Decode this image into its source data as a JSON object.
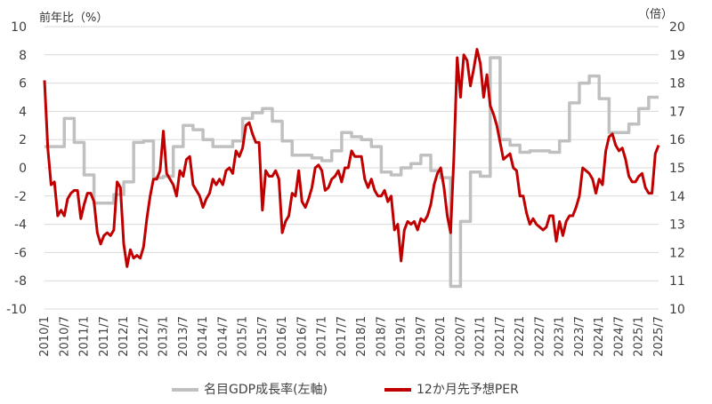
{
  "chart_data": {
    "type": "line",
    "title": "",
    "left_axis_unit": "前年比（%）",
    "right_axis_unit": "（倍）",
    "left_ylim": [
      -10,
      10
    ],
    "left_ticks": [
      10,
      8,
      6,
      4,
      2,
      0,
      -2,
      -4,
      -6,
      -8,
      -10
    ],
    "right_ylim": [
      10,
      20
    ],
    "right_ticks": [
      20,
      19,
      18,
      17,
      16,
      15,
      14,
      13,
      12,
      11,
      10
    ],
    "x_ticks": [
      "2010/1",
      "2010/7",
      "2011/1",
      "2011/7",
      "2012/1",
      "2012/7",
      "2013/1",
      "2013/7",
      "2014/1",
      "2014/7",
      "2015/1",
      "2015/7",
      "2016/1",
      "2016/7",
      "2017/1",
      "2017/7",
      "2018/1",
      "2018/7",
      "2019/1",
      "2019/7",
      "2020/1",
      "2020/7",
      "2021/1",
      "2021/7",
      "2022/1",
      "2022/7",
      "2023/1",
      "2023/7",
      "2024/1",
      "2024/7",
      "2025/1",
      "2025/7"
    ],
    "grid": true,
    "legend_position": "bottom",
    "series": [
      {
        "name": "名目GDP成長率(左軸)",
        "axis": "left",
        "color": "#c0c0c0",
        "step": true,
        "points": [
          [
            "2010/1",
            1.5
          ],
          [
            "2010/4",
            1.5
          ],
          [
            "2010/7",
            3.5
          ],
          [
            "2010/10",
            1.8
          ],
          [
            "2011/1",
            -0.5
          ],
          [
            "2011/4",
            -2.5
          ],
          [
            "2011/7",
            -2.5
          ],
          [
            "2011/10",
            -1.9
          ],
          [
            "2012/1",
            -1.0
          ],
          [
            "2012/4",
            1.8
          ],
          [
            "2012/7",
            1.9
          ],
          [
            "2012/10",
            -0.7
          ],
          [
            "2013/1",
            -0.6
          ],
          [
            "2013/4",
            1.5
          ],
          [
            "2013/7",
            3.0
          ],
          [
            "2013/10",
            2.7
          ],
          [
            "2014/1",
            2.0
          ],
          [
            "2014/4",
            1.5
          ],
          [
            "2014/7",
            1.5
          ],
          [
            "2014/10",
            1.9
          ],
          [
            "2015/1",
            3.5
          ],
          [
            "2015/4",
            3.9
          ],
          [
            "2015/7",
            4.2
          ],
          [
            "2015/10",
            3.3
          ],
          [
            "2016/1",
            1.9
          ],
          [
            "2016/4",
            0.9
          ],
          [
            "2016/7",
            0.9
          ],
          [
            "2016/10",
            0.7
          ],
          [
            "2017/1",
            0.5
          ],
          [
            "2017/4",
            1.2
          ],
          [
            "2017/7",
            2.5
          ],
          [
            "2017/10",
            2.2
          ],
          [
            "2018/1",
            2.0
          ],
          [
            "2018/4",
            1.5
          ],
          [
            "2018/7",
            -0.3
          ],
          [
            "2018/10",
            -0.5
          ],
          [
            "2019/1",
            0.0
          ],
          [
            "2019/4",
            0.3
          ],
          [
            "2019/7",
            0.9
          ],
          [
            "2019/10",
            -0.2
          ],
          [
            "2020/1",
            -0.7
          ],
          [
            "2020/4",
            -8.4
          ],
          [
            "2020/7",
            -3.8
          ],
          [
            "2020/10",
            -0.3
          ],
          [
            "2021/1",
            -0.6
          ],
          [
            "2021/4",
            7.8
          ],
          [
            "2021/7",
            2.0
          ],
          [
            "2021/10",
            1.6
          ],
          [
            "2022/1",
            1.1
          ],
          [
            "2022/4",
            1.2
          ],
          [
            "2022/7",
            1.2
          ],
          [
            "2022/10",
            1.1
          ],
          [
            "2023/1",
            1.9
          ],
          [
            "2023/4",
            4.6
          ],
          [
            "2023/7",
            6.0
          ],
          [
            "2023/10",
            6.5
          ],
          [
            "2024/1",
            4.9
          ],
          [
            "2024/4",
            2.5
          ],
          [
            "2024/7",
            2.5
          ],
          [
            "2024/10",
            3.1
          ],
          [
            "2025/1",
            4.2
          ],
          [
            "2025/4",
            5.0
          ],
          [
            "2025/7",
            5.0
          ]
        ]
      },
      {
        "name": "12か月先予想PER",
        "axis": "right",
        "color": "#c00000",
        "step": false,
        "points": [
          [
            "2010/1",
            18.1
          ],
          [
            "2010/2",
            15.7
          ],
          [
            "2010/3",
            14.4
          ],
          [
            "2010/4",
            14.5
          ],
          [
            "2010/5",
            13.3
          ],
          [
            "2010/6",
            13.5
          ],
          [
            "2010/7",
            13.3
          ],
          [
            "2010/8",
            13.9
          ],
          [
            "2010/9",
            14.1
          ],
          [
            "2010/10",
            14.2
          ],
          [
            "2010/11",
            14.2
          ],
          [
            "2010/12",
            13.2
          ],
          [
            "2011/1",
            13.7
          ],
          [
            "2011/2",
            14.1
          ],
          [
            "2011/3",
            14.1
          ],
          [
            "2011/4",
            13.8
          ],
          [
            "2011/5",
            12.7
          ],
          [
            "2011/6",
            12.3
          ],
          [
            "2011/7",
            12.6
          ],
          [
            "2011/8",
            12.7
          ],
          [
            "2011/9",
            12.6
          ],
          [
            "2011/10",
            12.8
          ],
          [
            "2011/11",
            14.5
          ],
          [
            "2011/12",
            14.3
          ],
          [
            "2012/1",
            12.3
          ],
          [
            "2012/2",
            11.5
          ],
          [
            "2012/3",
            12.1
          ],
          [
            "2012/4",
            11.8
          ],
          [
            "2012/5",
            11.9
          ],
          [
            "2012/6",
            11.8
          ],
          [
            "2012/7",
            12.2
          ],
          [
            "2012/8",
            13.2
          ],
          [
            "2012/9",
            14.0
          ],
          [
            "2012/10",
            14.6
          ],
          [
            "2012/11",
            14.6
          ],
          [
            "2012/12",
            14.9
          ],
          [
            "2013/1",
            16.3
          ],
          [
            "2013/2",
            14.8
          ],
          [
            "2013/3",
            14.6
          ],
          [
            "2013/4",
            14.4
          ],
          [
            "2013/5",
            14.0
          ],
          [
            "2013/6",
            14.9
          ],
          [
            "2013/7",
            14.7
          ],
          [
            "2013/8",
            15.3
          ],
          [
            "2013/9",
            15.4
          ],
          [
            "2013/10",
            14.4
          ],
          [
            "2013/11",
            14.2
          ],
          [
            "2013/12",
            14.0
          ],
          [
            "2014/1",
            13.6
          ],
          [
            "2014/2",
            13.9
          ],
          [
            "2014/3",
            14.1
          ],
          [
            "2014/4",
            14.6
          ],
          [
            "2014/5",
            14.4
          ],
          [
            "2014/6",
            14.6
          ],
          [
            "2014/7",
            14.4
          ],
          [
            "2014/8",
            14.9
          ],
          [
            "2014/9",
            15.0
          ],
          [
            "2014/10",
            14.8
          ],
          [
            "2014/11",
            15.6
          ],
          [
            "2014/12",
            15.4
          ],
          [
            "2015/1",
            15.7
          ],
          [
            "2015/2",
            16.5
          ],
          [
            "2015/3",
            16.6
          ],
          [
            "2015/4",
            16.2
          ],
          [
            "2015/5",
            15.9
          ],
          [
            "2015/6",
            15.9
          ],
          [
            "2015/7",
            13.5
          ],
          [
            "2015/8",
            14.9
          ],
          [
            "2015/9",
            14.7
          ],
          [
            "2015/10",
            14.7
          ],
          [
            "2015/11",
            14.9
          ],
          [
            "2015/12",
            14.6
          ],
          [
            "2016/1",
            12.7
          ],
          [
            "2016/2",
            13.1
          ],
          [
            "2016/3",
            13.3
          ],
          [
            "2016/4",
            14.1
          ],
          [
            "2016/5",
            14.0
          ],
          [
            "2016/6",
            14.9
          ],
          [
            "2016/7",
            13.8
          ],
          [
            "2016/8",
            13.6
          ],
          [
            "2016/9",
            13.9
          ],
          [
            "2016/10",
            14.3
          ],
          [
            "2016/11",
            15.0
          ],
          [
            "2016/12",
            15.1
          ],
          [
            "2017/1",
            14.9
          ],
          [
            "2017/2",
            14.2
          ],
          [
            "2017/3",
            14.3
          ],
          [
            "2017/4",
            14.6
          ],
          [
            "2017/5",
            14.7
          ],
          [
            "2017/6",
            14.9
          ],
          [
            "2017/7",
            14.5
          ],
          [
            "2017/8",
            15.0
          ],
          [
            "2017/9",
            15.0
          ],
          [
            "2017/10",
            15.6
          ],
          [
            "2017/11",
            15.4
          ],
          [
            "2017/12",
            15.4
          ],
          [
            "2018/1",
            15.4
          ],
          [
            "2018/2",
            14.6
          ],
          [
            "2018/3",
            14.3
          ],
          [
            "2018/4",
            14.6
          ],
          [
            "2018/5",
            14.2
          ],
          [
            "2018/6",
            14.0
          ],
          [
            "2018/7",
            14.0
          ],
          [
            "2018/8",
            14.2
          ],
          [
            "2018/9",
            13.8
          ],
          [
            "2018/10",
            14.0
          ],
          [
            "2018/11",
            12.8
          ],
          [
            "2018/12",
            13.0
          ],
          [
            "2019/1",
            11.7
          ],
          [
            "2019/2",
            12.8
          ],
          [
            "2019/3",
            13.1
          ],
          [
            "2019/4",
            13.0
          ],
          [
            "2019/5",
            13.1
          ],
          [
            "2019/6",
            12.8
          ],
          [
            "2019/7",
            13.2
          ],
          [
            "2019/8",
            13.1
          ],
          [
            "2019/9",
            13.3
          ],
          [
            "2019/10",
            13.7
          ],
          [
            "2019/11",
            14.4
          ],
          [
            "2019/12",
            14.8
          ],
          [
            "2020/1",
            15.0
          ],
          [
            "2020/2",
            14.3
          ],
          [
            "2020/3",
            13.3
          ],
          [
            "2020/4",
            12.7
          ],
          [
            "2020/5",
            15.4
          ],
          [
            "2020/6",
            18.9
          ],
          [
            "2020/7",
            17.5
          ],
          [
            "2020/8",
            19.0
          ],
          [
            "2020/9",
            18.8
          ],
          [
            "2020/10",
            17.9
          ],
          [
            "2020/11",
            18.5
          ],
          [
            "2020/12",
            19.2
          ],
          [
            "2021/1",
            18.7
          ],
          [
            "2021/2",
            17.5
          ],
          [
            "2021/3",
            18.3
          ],
          [
            "2021/4",
            17.2
          ],
          [
            "2021/5",
            16.9
          ],
          [
            "2021/6",
            16.5
          ],
          [
            "2021/7",
            15.9
          ],
          [
            "2021/8",
            15.3
          ],
          [
            "2021/9",
            15.4
          ],
          [
            "2021/10",
            15.5
          ],
          [
            "2021/11",
            15.0
          ],
          [
            "2021/12",
            14.9
          ],
          [
            "2022/1",
            14.0
          ],
          [
            "2022/2",
            14.0
          ],
          [
            "2022/3",
            13.4
          ],
          [
            "2022/4",
            13.0
          ],
          [
            "2022/5",
            13.2
          ],
          [
            "2022/6",
            13.0
          ],
          [
            "2022/7",
            12.9
          ],
          [
            "2022/8",
            12.8
          ],
          [
            "2022/9",
            12.9
          ],
          [
            "2022/10",
            13.3
          ],
          [
            "2022/11",
            13.3
          ],
          [
            "2022/12",
            12.4
          ],
          [
            "2023/1",
            13.1
          ],
          [
            "2023/2",
            12.6
          ],
          [
            "2023/3",
            13.1
          ],
          [
            "2023/4",
            13.3
          ],
          [
            "2023/5",
            13.3
          ],
          [
            "2023/6",
            13.6
          ],
          [
            "2023/7",
            14.0
          ],
          [
            "2023/8",
            15.0
          ],
          [
            "2023/9",
            14.9
          ],
          [
            "2023/10",
            14.8
          ],
          [
            "2023/11",
            14.6
          ],
          [
            "2023/12",
            14.1
          ],
          [
            "2024/1",
            14.6
          ],
          [
            "2024/2",
            14.4
          ],
          [
            "2024/3",
            15.6
          ],
          [
            "2024/4",
            16.1
          ],
          [
            "2024/5",
            16.2
          ],
          [
            "2024/6",
            15.8
          ],
          [
            "2024/7",
            15.6
          ],
          [
            "2024/8",
            15.7
          ],
          [
            "2024/9",
            15.3
          ],
          [
            "2024/10",
            14.7
          ],
          [
            "2024/11",
            14.5
          ],
          [
            "2024/12",
            14.5
          ],
          [
            "2025/1",
            14.7
          ],
          [
            "2025/2",
            14.8
          ],
          [
            "2025/3",
            14.3
          ],
          [
            "2025/4",
            14.1
          ],
          [
            "2025/5",
            14.1
          ],
          [
            "2025/6",
            15.5
          ],
          [
            "2025/7",
            15.8
          ]
        ]
      }
    ]
  }
}
